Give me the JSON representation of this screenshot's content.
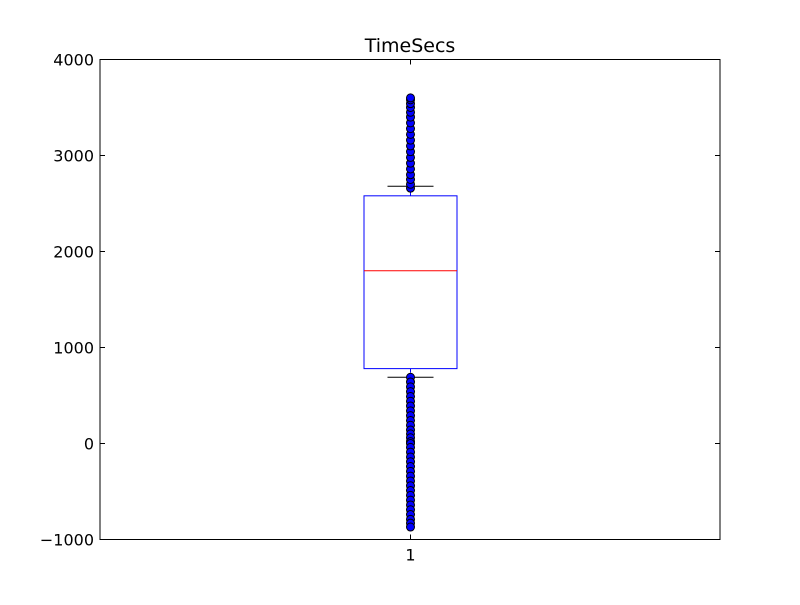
{
  "chart_data": {
    "type": "box",
    "title": "TimeSecs",
    "xlabel": "",
    "ylabel": "",
    "categories": [
      "1"
    ],
    "ylim": [
      -1000,
      4000
    ],
    "yticks": [
      -1000,
      0,
      1000,
      2000,
      3000,
      4000
    ],
    "ytick_labels": [
      "−1000",
      "0",
      "1000",
      "2000",
      "3000",
      "4000"
    ],
    "grid": false,
    "boxes": [
      {
        "category": "1",
        "whisker_low": 690,
        "q1": 780,
        "median": 1800,
        "q3": 2580,
        "whisker_high": 2680,
        "outliers_high": [
          2660,
          2700,
          2750,
          2800,
          2860,
          2920,
          2980,
          3040,
          3100,
          3160,
          3220,
          3280,
          3340,
          3400,
          3450,
          3500,
          3540,
          3580,
          3600
        ],
        "outliers_low": [
          690,
          640,
          590,
          540,
          490,
          440,
          390,
          340,
          290,
          240,
          190,
          140,
          100,
          60,
          20,
          0,
          -40,
          -90,
          -140,
          -190,
          -240,
          -290,
          -340,
          -390,
          -440,
          -490,
          -540,
          -590,
          -640,
          -690,
          -740,
          -790,
          -830,
          -870
        ]
      }
    ],
    "colors": {
      "box": "#0000ff",
      "median": "#ff0000",
      "whisker": "#000000",
      "flier_fill": "#0000ff",
      "flier_edge": "#000000",
      "frame": "#000000"
    }
  }
}
